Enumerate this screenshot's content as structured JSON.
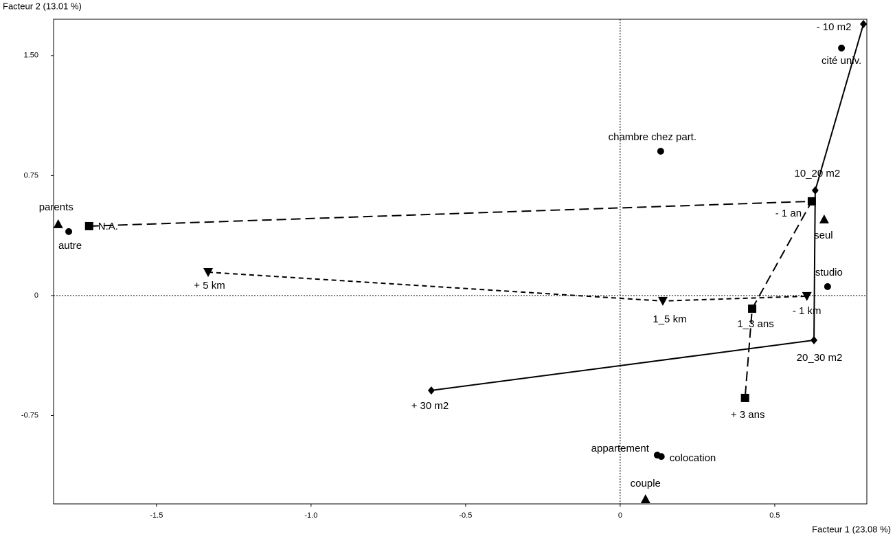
{
  "chart_data": {
    "type": "scatter",
    "x_label": "Facteur 1 (23.08 %)",
    "y_label": "Facteur 2 (13.01 %)",
    "xlim": [
      -1.833,
      0.798
    ],
    "ylim": [
      -1.302,
      1.727
    ],
    "xticks": [
      -1.5,
      {
        "value": -1,
        "label": "-1.0"
      },
      -0.5,
      0,
      0.5
    ],
    "yticks": [
      {
        "value": 1.5,
        "label": "1.50"
      },
      0.75,
      0,
      -0.75
    ],
    "zero_lines": true,
    "series": [
      {
        "marker": "circle",
        "color": "#000000",
        "line": "none",
        "labels": [
          "cité univ.",
          "chambre chez part.",
          "autre",
          "studio",
          "appartement",
          "colocation"
        ],
        "x": [
          0.716,
          0.131,
          -1.784,
          0.671,
          0.12,
          0.133
        ],
        "values": [
          1.547,
          0.902,
          0.4,
          0.056,
          -0.997,
          -1.006
        ]
      },
      {
        "marker": "triangle-up",
        "color": "#000000",
        "line": "none",
        "labels": [
          "parents",
          "seul",
          "couple"
        ],
        "x": [
          -1.818,
          0.66,
          0.082
        ],
        "values": [
          0.447,
          0.477,
          -1.272
        ]
      },
      {
        "marker": "square",
        "color": "#000000",
        "line": "long-dash",
        "labels": [
          "N.A.",
          "- 1 an",
          "1_3 ans",
          "+ 3 ans"
        ],
        "x": [
          -1.718,
          0.62,
          0.427,
          0.404
        ],
        "values": [
          0.434,
          0.589,
          -0.082,
          -0.64
        ]
      },
      {
        "marker": "triangle-down",
        "color": "#000000",
        "line": "short-dash",
        "labels": [
          "+ 5 km",
          "1_5 km",
          "- 1 km"
        ],
        "x": [
          -1.333,
          0.138,
          0.604
        ],
        "values": [
          0.146,
          -0.034,
          -0.004
        ]
      },
      {
        "marker": "diamond",
        "color": "#000000",
        "line": "solid",
        "labels": [
          "- 10 m2",
          "10_20 m2",
          "20_30 m2",
          "+ 30 m2"
        ],
        "x": [
          0.787,
          0.631,
          0.627,
          -0.611
        ],
        "values": [
          1.697,
          0.657,
          -0.279,
          -0.593
        ]
      }
    ]
  }
}
